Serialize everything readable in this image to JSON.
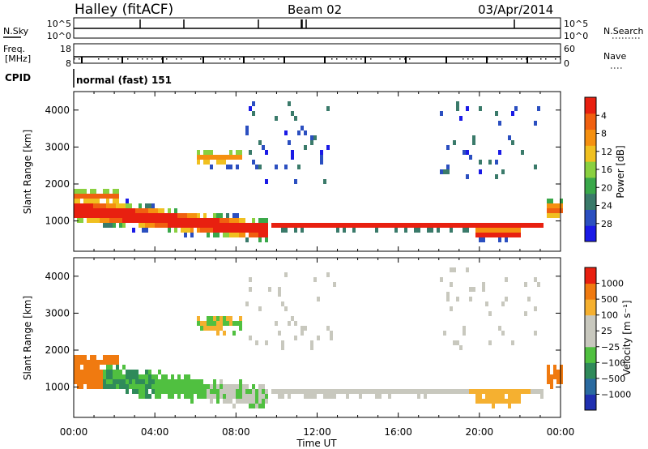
{
  "header": {
    "station": "Halley (fitACF)",
    "beam": "Beam 02",
    "date": "03/Apr/2014"
  },
  "strips": {
    "nsky_label": "N.Sky",
    "nsky_ticks": [
      "10^5",
      "10^0"
    ],
    "nsearch_label": "N.Search",
    "nsearch_ticks": [
      "10^5",
      "10^0"
    ],
    "freq_label_1": "Freq.",
    "freq_label_2": "[MHz]",
    "freq_ticks": [
      "18",
      "8"
    ],
    "nave_label": "Nave",
    "nave_ticks": [
      "60",
      "0"
    ],
    "cpid_label": "CPID",
    "cpid_value": "normal (fast) 151"
  },
  "chart_data": [
    {
      "type": "heatmap",
      "name": "power",
      "ylabel": "Slant Range [km]",
      "xlabel": "Time UT",
      "x_ticks": [
        "00:00",
        "04:00",
        "08:00",
        "12:00",
        "16:00",
        "20:00",
        "00:00"
      ],
      "xlim_hours": [
        0,
        24
      ],
      "ylim_km": [
        180,
        4500
      ],
      "y_ticks": [
        1000,
        2000,
        3000,
        4000
      ],
      "colorbar": {
        "label": "Power [dB]",
        "ticks": [
          "4",
          "8",
          "12",
          "16",
          "20",
          "24",
          "28"
        ],
        "colors": [
          "#1a1ae6",
          "#2b4fc0",
          "#3a7a6a",
          "#3aa84a",
          "#8ad040",
          "#f0c020",
          "#f59010",
          "#f06010",
          "#e82010"
        ]
      }
    },
    {
      "type": "heatmap",
      "name": "velocity",
      "ylabel": "Slant Range [km]",
      "xlabel": "Time UT",
      "x_ticks": [
        "00:00",
        "04:00",
        "08:00",
        "12:00",
        "16:00",
        "20:00",
        "00:00"
      ],
      "xlim_hours": [
        0,
        24
      ],
      "ylim_km": [
        180,
        4500
      ],
      "y_ticks": [
        1000,
        2000,
        3000,
        4000
      ],
      "colorbar": {
        "label": "Velocity [m s⁻¹]",
        "ticks": [
          "1000",
          "500",
          "100",
          "25",
          "−25",
          "−100",
          "−500",
          "−1000"
        ],
        "colors": [
          "#2030b0",
          "#2a6aa0",
          "#2f8a5a",
          "#50c040",
          "#c8c8be",
          "#c8c8be",
          "#f5b030",
          "#f07a10",
          "#e82010"
        ]
      }
    }
  ]
}
